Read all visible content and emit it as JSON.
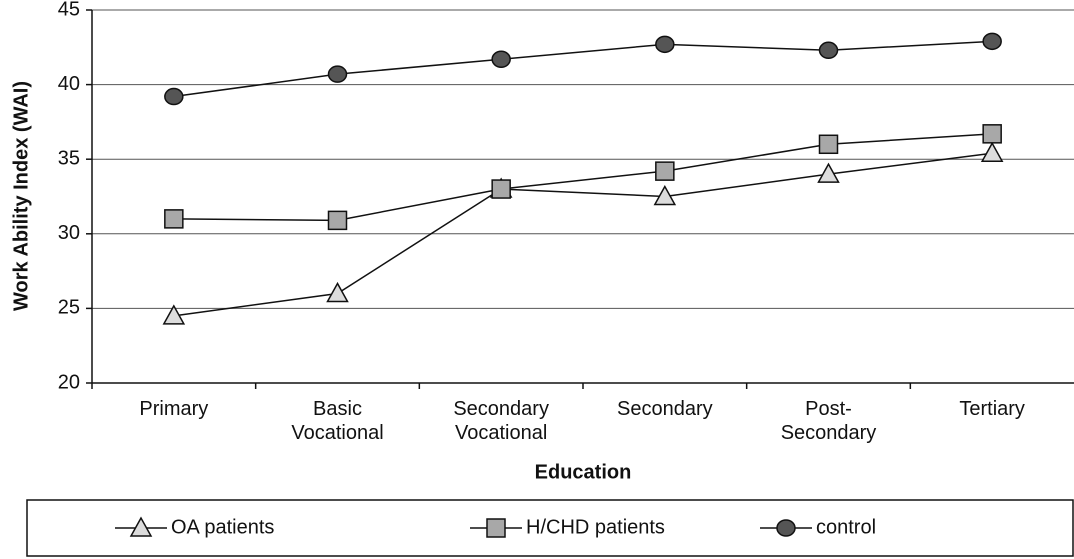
{
  "chart_data": {
    "type": "line",
    "x_label": "Education",
    "y_label": "Work Ability Index (WAI)",
    "categories": [
      "Primary",
      "Basic\nVocational",
      "Secondary\nVocational",
      "Secondary",
      "Post-\nSecondary",
      "Tertiary"
    ],
    "series": [
      {
        "name": "OA patients",
        "color": "#dcdcdc",
        "marker": "triangle",
        "values": [
          24.5,
          26,
          33,
          32.5,
          34,
          35.4
        ]
      },
      {
        "name": "H/CHD patients",
        "color": "#a8a8a8",
        "marker": "square",
        "values": [
          31,
          30.9,
          33,
          34.2,
          36,
          36.7
        ]
      },
      {
        "name": "control",
        "color": "#555555",
        "marker": "circle",
        "values": [
          39.2,
          40.7,
          41.7,
          42.7,
          42.3,
          42.9
        ]
      }
    ],
    "ylim": [
      20,
      45
    ],
    "yticks": [
      20,
      25,
      30,
      35,
      40,
      45
    ],
    "grid": true,
    "legend": "bottom"
  }
}
